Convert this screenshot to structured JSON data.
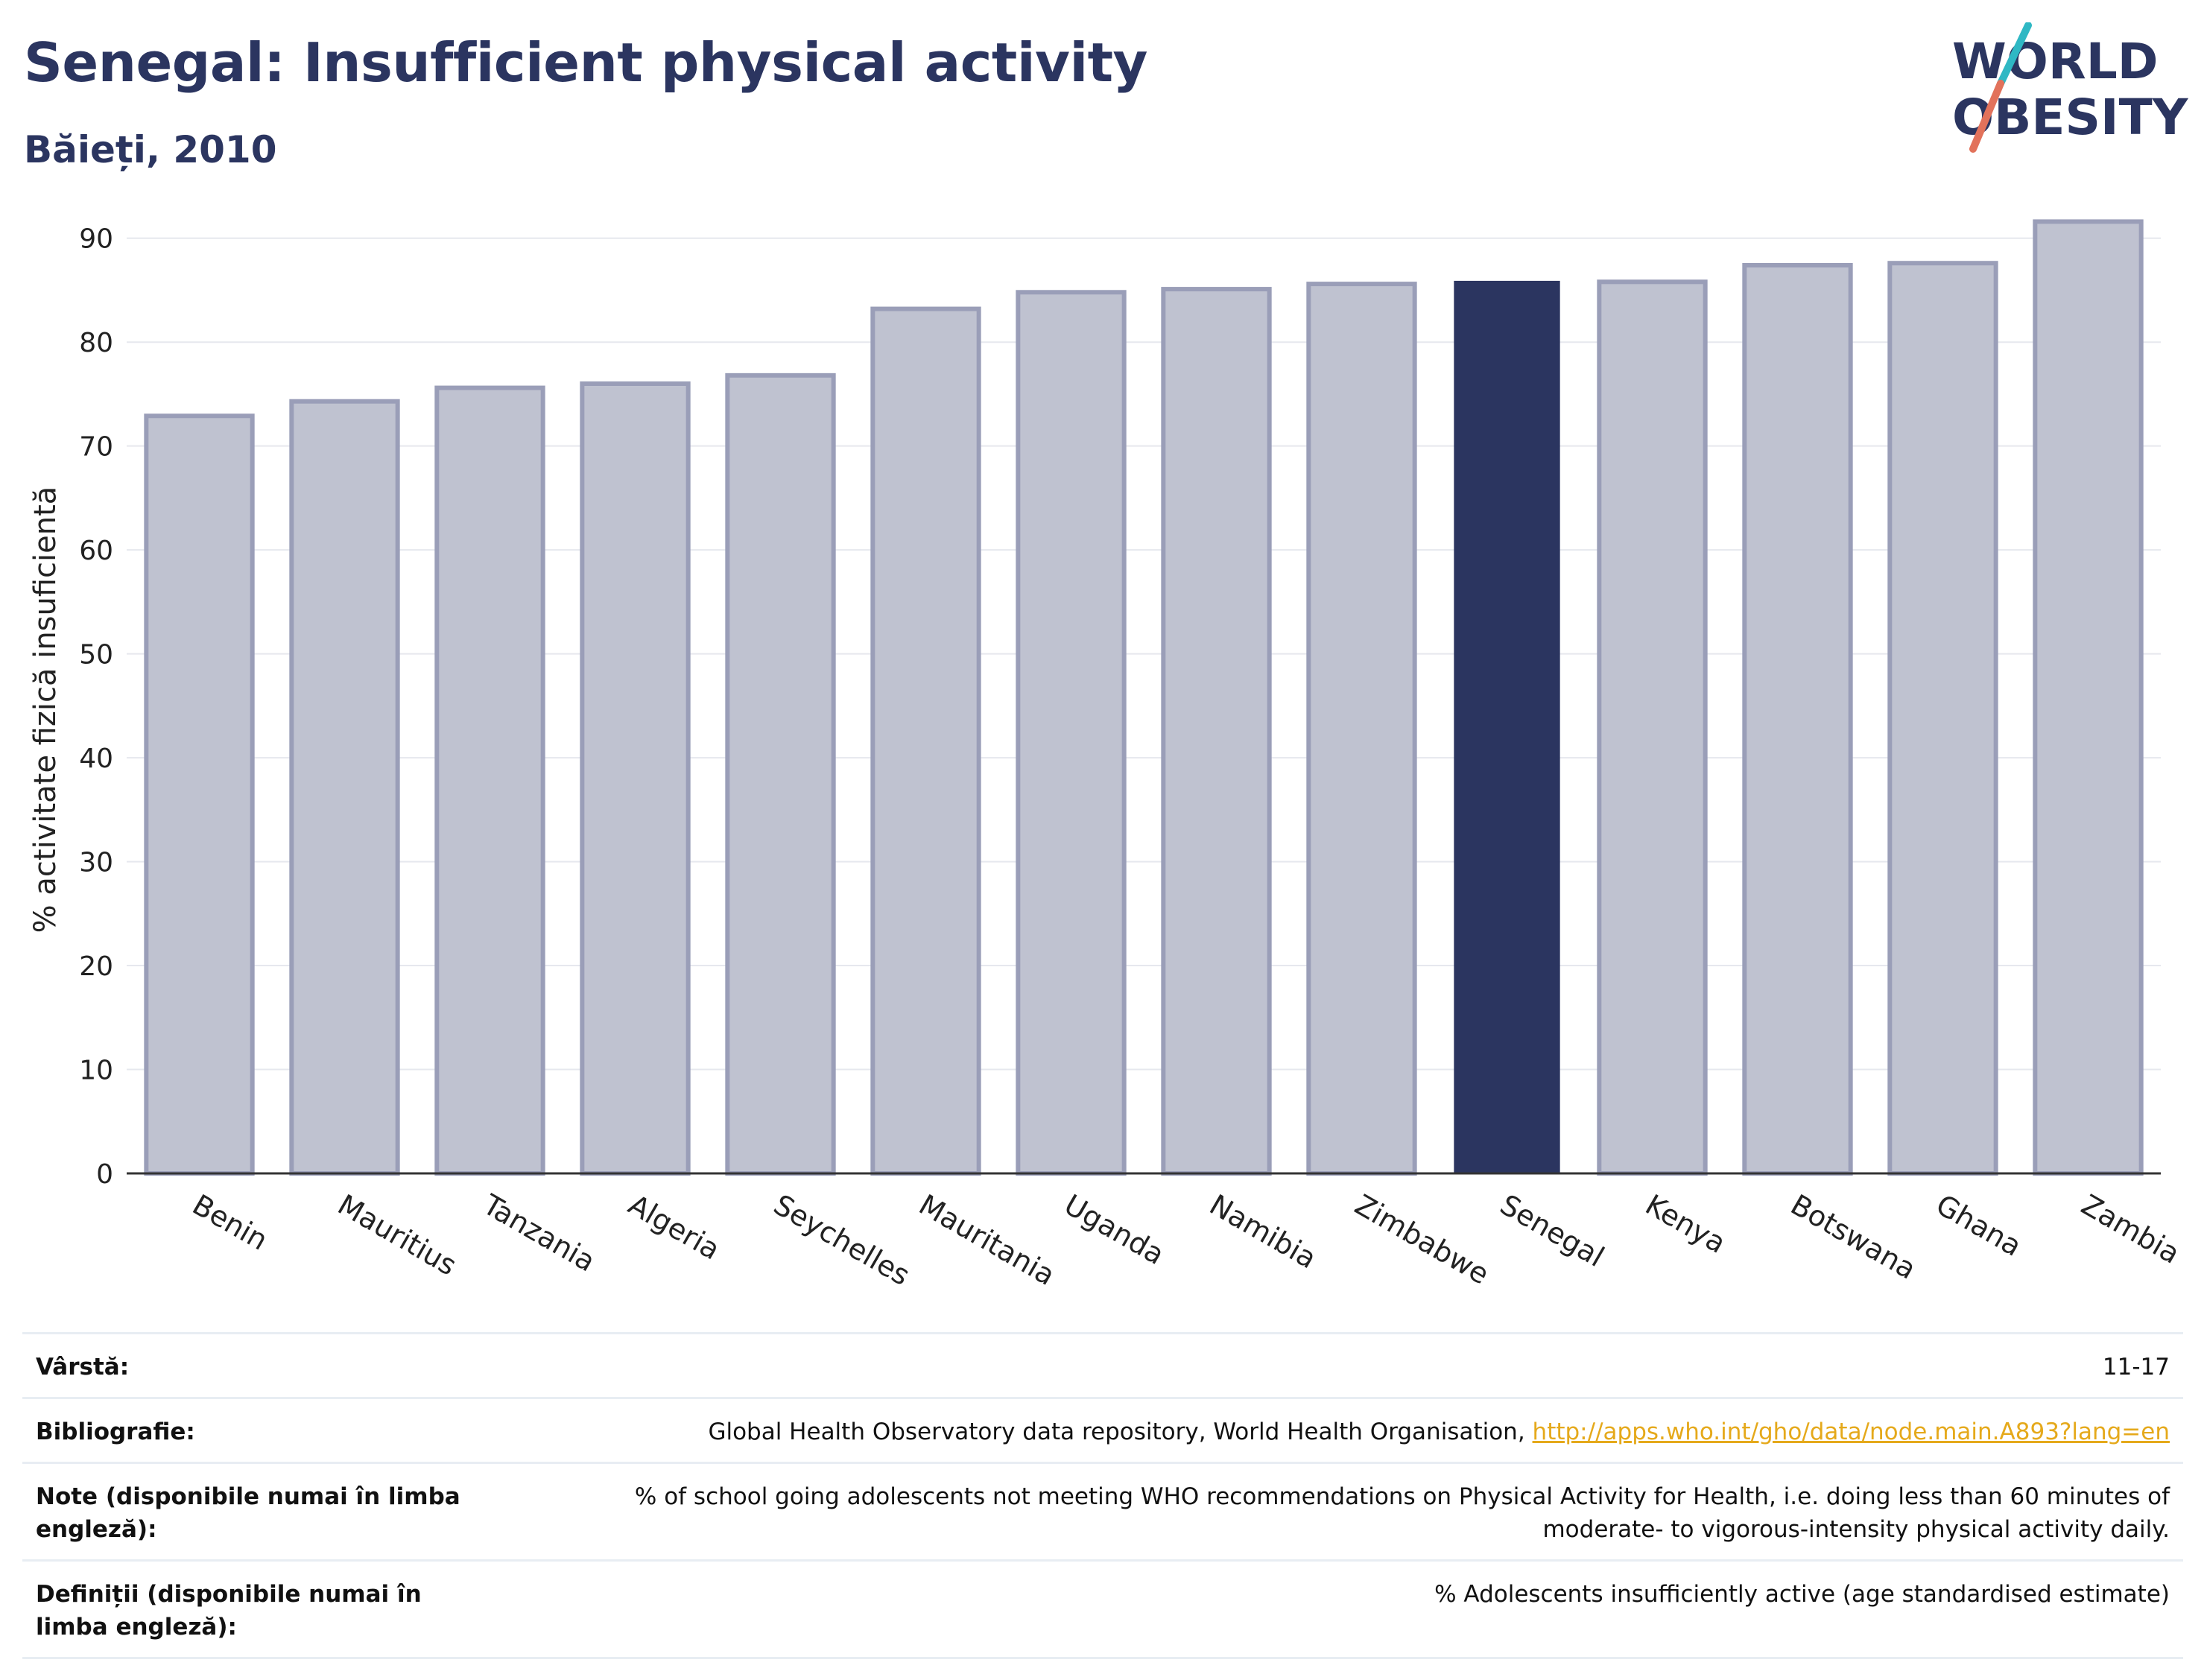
{
  "header": {
    "title": "Senegal: Insufficient physical activity",
    "subtitle": "Băieți, 2010"
  },
  "logo": {
    "line1": "WORLD",
    "line2": "OBESITY",
    "colors": {
      "text": "#2b3560",
      "slash_top": "#2fb8c4",
      "slash_bottom": "#e2725b"
    }
  },
  "colors": {
    "bar": "#bfc2d0",
    "bar_edge": "#9a9eb8",
    "highlight": "#2b3560",
    "grid": "#e6e8ee",
    "axis": "#333333"
  },
  "chart_data": {
    "type": "bar",
    "ylabel": "% activitate fizică insuficientă",
    "ylim": [
      0,
      95
    ],
    "yticks": [
      0,
      10,
      20,
      30,
      40,
      50,
      60,
      70,
      80,
      90
    ],
    "categories": [
      "Benin",
      "Mauritius",
      "Tanzania",
      "Algeria",
      "Seychelles",
      "Mauritania",
      "Uganda",
      "Namibia",
      "Zimbabwe",
      "Senegal",
      "Kenya",
      "Botswana",
      "Ghana",
      "Zambia"
    ],
    "values": [
      72.9,
      74.3,
      75.6,
      76.0,
      76.8,
      83.2,
      84.8,
      85.1,
      85.6,
      85.9,
      85.8,
      87.4,
      87.6,
      91.6
    ],
    "highlight": "Senegal",
    "grid": true
  },
  "meta": {
    "age": {
      "label": "Vârstă:",
      "value": "11-17"
    },
    "bibliography": {
      "label": "Bibliografie:",
      "value": "Global Health Observatory data repository, World Health Organisation, ",
      "link": "http://apps.who.int/gho/data/node.main.A893?lang=en"
    },
    "notes": {
      "label": "Note (disponibile numai în limba engleză):",
      "value": "% of school going adolescents not meeting WHO recommendations on Physical Activity for Health, i.e. doing less than 60 minutes of moderate- to vigorous-intensity physical activity daily."
    },
    "definitions": {
      "label": "Definiții (disponibile numai în limba engleză):",
      "value": "% Adolescents insufficiently active (age standardised estimate)"
    }
  }
}
